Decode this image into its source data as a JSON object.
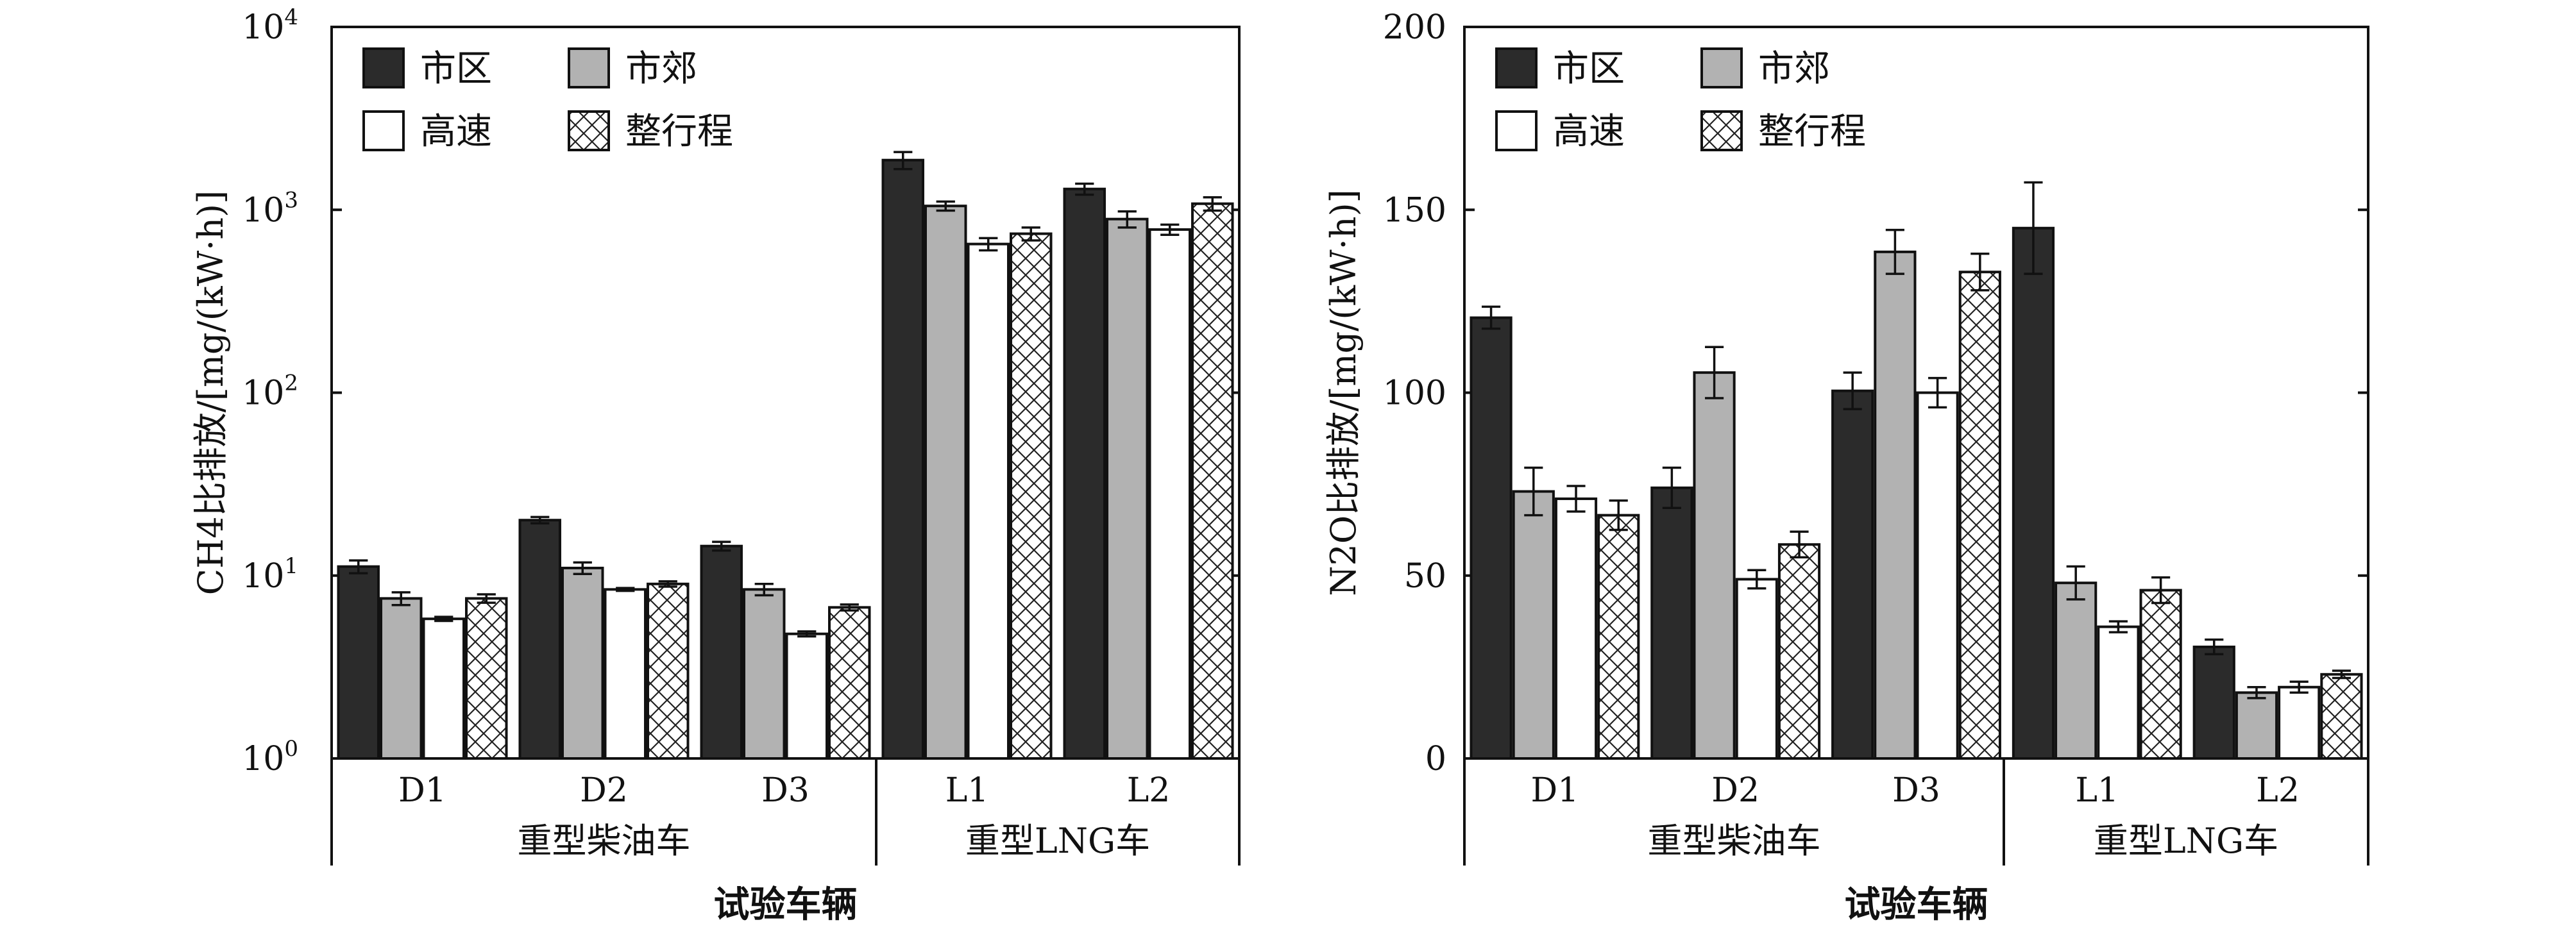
{
  "legend": {
    "labels": [
      "市区",
      "市郊",
      "高速",
      "整行程"
    ]
  },
  "xaxis": {
    "groups": [
      {
        "label": "重型柴油车",
        "vehicles": [
          "D1",
          "D2",
          "D3"
        ]
      },
      {
        "label": "重型LNG车",
        "vehicles": [
          "L1",
          "L2"
        ]
      }
    ],
    "title": "试验车辆"
  },
  "chart_data": [
    {
      "type": "bar",
      "scale": "log",
      "ylabel": "CH4比排放/[mg/(kW·h)]",
      "ylim": [
        1,
        10000
      ],
      "yticks": [
        {
          "value": 1,
          "base": "10",
          "exp": "0"
        },
        {
          "value": 10,
          "base": "10",
          "exp": "1"
        },
        {
          "value": 100,
          "base": "10",
          "exp": "2"
        },
        {
          "value": 1000,
          "base": "10",
          "exp": "3"
        },
        {
          "value": 10000,
          "base": "10",
          "exp": "4"
        }
      ],
      "categories": [
        "D1",
        "D2",
        "D3",
        "L1",
        "L2"
      ],
      "series": [
        {
          "name": "市区",
          "values": [
            11.2,
            20.1,
            14.5,
            1870,
            1300
          ],
          "errors": [
            0.9,
            0.8,
            0.8,
            200,
            90
          ]
        },
        {
          "name": "市郊",
          "values": [
            7.5,
            11.0,
            8.4,
            1050,
            890
          ],
          "errors": [
            0.6,
            0.8,
            0.6,
            60,
            90
          ]
        },
        {
          "name": "高速",
          "values": [
            5.8,
            8.4,
            4.8,
            650,
            780
          ],
          "errors": [
            0.15,
            0.15,
            0.15,
            50,
            50
          ]
        },
        {
          "name": "整行程",
          "values": [
            7.5,
            9.0,
            6.7,
            740,
            1080
          ],
          "errors": [
            0.4,
            0.3,
            0.25,
            60,
            90
          ]
        }
      ],
      "legend_position": "top-left",
      "grid": false
    },
    {
      "type": "bar",
      "scale": "linear",
      "ylabel": "N2O比排放/[mg/(kW·h)]",
      "ylim": [
        0,
        200
      ],
      "yticks": [
        0,
        50,
        100,
        150,
        200
      ],
      "categories": [
        "D1",
        "D2",
        "D3",
        "L1",
        "L2"
      ],
      "series": [
        {
          "name": "市区",
          "values": [
            120.5,
            74,
            100.5,
            145,
            30.5
          ],
          "errors": [
            3,
            5.5,
            5,
            12.5,
            2
          ]
        },
        {
          "name": "市郊",
          "values": [
            73,
            105.5,
            138.5,
            48,
            18
          ],
          "errors": [
            6.5,
            7,
            6,
            4.5,
            1.5
          ]
        },
        {
          "name": "高速",
          "values": [
            71,
            49,
            100,
            36,
            19.5
          ],
          "errors": [
            3.5,
            2.5,
            4,
            1.5,
            1.5
          ]
        },
        {
          "name": "整行程",
          "values": [
            66.5,
            58.5,
            133,
            46,
            23
          ],
          "errors": [
            4,
            3.5,
            5,
            3.5,
            1
          ]
        }
      ],
      "legend_position": "top-left",
      "grid": false
    }
  ]
}
